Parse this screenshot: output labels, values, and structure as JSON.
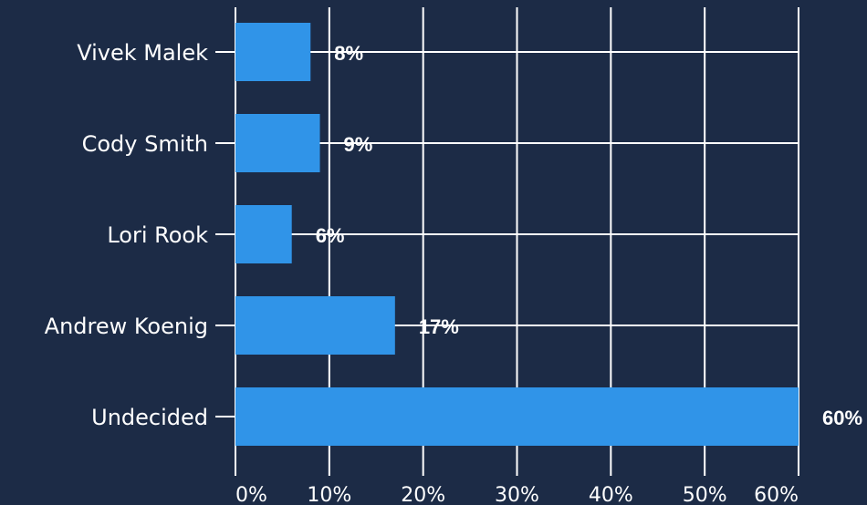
{
  "chart_data": {
    "type": "bar",
    "orientation": "horizontal",
    "categories": [
      "Vivek Malek",
      "Cody Smith",
      "Lori Rook",
      "Andrew Koenig",
      "Undecided"
    ],
    "values": [
      8,
      9,
      6,
      17,
      60
    ],
    "value_labels": [
      "8%",
      "9%",
      "6%",
      "17%",
      "60%"
    ],
    "xticks": [
      0,
      10,
      20,
      30,
      40,
      50,
      60
    ],
    "xtick_labels": [
      "0%",
      "10%",
      "20%",
      "30%",
      "40%",
      "50%",
      "60%"
    ],
    "xlim": [
      0,
      60
    ],
    "grid": true,
    "title": "",
    "xlabel": "",
    "ylabel": ""
  },
  "colors": {
    "background": "#1c2b46",
    "bar": "#3094e8",
    "grid": "#ffffff",
    "text": "#ffffff"
  }
}
